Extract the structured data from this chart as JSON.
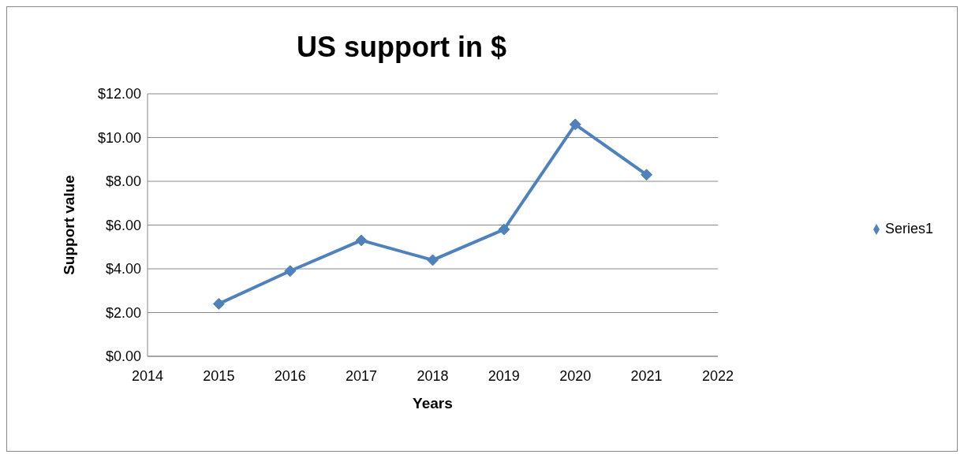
{
  "chart_data": {
    "type": "line",
    "title": "US support in $",
    "xlabel": "Years",
    "ylabel": "Support value",
    "x": [
      2015,
      2016,
      2017,
      2018,
      2019,
      2020,
      2021
    ],
    "series": [
      {
        "name": "Series1",
        "color": "#4f81bd",
        "values": [
          2.4,
          3.9,
          5.3,
          4.4,
          5.8,
          10.6,
          8.3
        ]
      }
    ],
    "xlim": [
      2014,
      2022
    ],
    "xticks": [
      2014,
      2015,
      2016,
      2017,
      2018,
      2019,
      2020,
      2021,
      2022
    ],
    "ylim": [
      0,
      12
    ],
    "yticks": [
      {
        "value": 0,
        "label": "$0.00"
      },
      {
        "value": 2,
        "label": "$2.00"
      },
      {
        "value": 4,
        "label": "$4.00"
      },
      {
        "value": 6,
        "label": "$6.00"
      },
      {
        "value": 8,
        "label": "$8.00"
      },
      {
        "value": 10,
        "label": "$10.00"
      },
      {
        "value": 12,
        "label": "$12.00"
      }
    ],
    "grid": "y",
    "legend": "right",
    "marker": "diamond",
    "line_style": "solid"
  }
}
